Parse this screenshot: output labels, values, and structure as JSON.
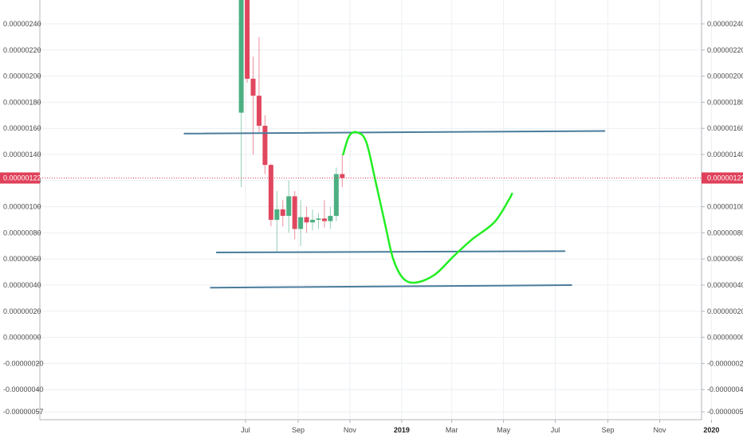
{
  "chart_data": {
    "type": "candlestick",
    "y_ticks": [
      "0.00000240",
      "0.00000220",
      "0.00000200",
      "0.00000180",
      "0.00000160",
      "0.00000140",
      "0.00000120",
      "0.00000100",
      "0.00000080",
      "0.00000060",
      "0.00000040",
      "0.00000020",
      "0.00000000",
      "-0.00000020",
      "-0.00000040",
      "-0.00000057"
    ],
    "ylim": [
      -5.7e-07,
      2.63e-06
    ],
    "x_ticks": [
      {
        "label": "Jul",
        "date": "2018-07-01",
        "bold": false
      },
      {
        "label": "Sep",
        "date": "2018-09-01",
        "bold": false
      },
      {
        "label": "Nov",
        "date": "2018-11-01",
        "bold": false
      },
      {
        "label": "2019",
        "date": "2019-01-01",
        "bold": true
      },
      {
        "label": "Mar",
        "date": "2019-03-01",
        "bold": false
      },
      {
        "label": "May",
        "date": "2019-05-01",
        "bold": false
      },
      {
        "label": "Jul",
        "date": "2019-07-01",
        "bold": false
      },
      {
        "label": "Sep",
        "date": "2019-09-01",
        "bold": false
      },
      {
        "label": "Nov",
        "date": "2019-11-01",
        "bold": false
      },
      {
        "label": "2020",
        "date": "2020-01-01",
        "bold": true
      }
    ],
    "current_price": {
      "label": "0.00000122",
      "value": 1.22e-06,
      "color": "#e0405a"
    },
    "colors": {
      "up": "#4caf82",
      "down": "#e0475e",
      "grid": "#eceff3",
      "trendline": "#4a7c9b",
      "drawing": "#22ee22"
    },
    "candles": [
      {
        "date": "2018-06-25",
        "o": 1.72e-06,
        "h": 3e-06,
        "l": 1.15e-06,
        "c": 3e-06
      },
      {
        "date": "2018-07-02",
        "o": 3e-06,
        "h": 3e-06,
        "l": 1.95e-06,
        "c": 1.98e-06
      },
      {
        "date": "2018-07-09",
        "o": 1.98e-06,
        "h": 2.15e-06,
        "l": 1.4e-06,
        "c": 1.85e-06
      },
      {
        "date": "2018-07-16",
        "o": 1.85e-06,
        "h": 2.3e-06,
        "l": 1.57e-06,
        "c": 1.62e-06
      },
      {
        "date": "2018-07-23",
        "o": 1.62e-06,
        "h": 1.7e-06,
        "l": 1.25e-06,
        "c": 1.32e-06
      },
      {
        "date": "2018-07-30",
        "o": 1.32e-06,
        "h": 1.33e-06,
        "l": 8.5e-07,
        "c": 9e-07
      },
      {
        "date": "2018-08-06",
        "o": 9e-07,
        "h": 1.12e-06,
        "l": 6.5e-07,
        "c": 9.8e-07
      },
      {
        "date": "2018-08-13",
        "o": 9.8e-07,
        "h": 1.05e-06,
        "l": 8.5e-07,
        "c": 9.3e-07
      },
      {
        "date": "2018-08-20",
        "o": 9.3e-07,
        "h": 1.2e-06,
        "l": 8e-07,
        "c": 1.08e-06
      },
      {
        "date": "2018-08-27",
        "o": 1.08e-06,
        "h": 1.12e-06,
        "l": 7.5e-07,
        "c": 8.3e-07
      },
      {
        "date": "2018-09-03",
        "o": 8.3e-07,
        "h": 1.05e-06,
        "l": 7e-07,
        "c": 9.2e-07
      },
      {
        "date": "2018-09-10",
        "o": 9.2e-07,
        "h": 1e-06,
        "l": 8e-07,
        "c": 8.8e-07
      },
      {
        "date": "2018-09-17",
        "o": 8.8e-07,
        "h": 9.8e-07,
        "l": 8.2e-07,
        "c": 9e-07
      },
      {
        "date": "2018-09-24",
        "o": 9e-07,
        "h": 9.5e-07,
        "l": 8.3e-07,
        "c": 9.1e-07
      },
      {
        "date": "2018-10-01",
        "o": 9.1e-07,
        "h": 1.05e-06,
        "l": 8.4e-07,
        "c": 8.9e-07
      },
      {
        "date": "2018-10-08",
        "o": 8.9e-07,
        "h": 1e-06,
        "l": 8.3e-07,
        "c": 9.3e-07
      },
      {
        "date": "2018-10-15",
        "o": 9.3e-07,
        "h": 1.3e-06,
        "l": 8.9e-07,
        "c": 1.25e-06
      },
      {
        "date": "2018-10-22",
        "o": 1.25e-06,
        "h": 1.4e-06,
        "l": 1.15e-06,
        "c": 1.22e-06
      }
    ],
    "trendlines": [
      {
        "x1": "2018-04-20",
        "y1": 1.56e-06,
        "x2": "2019-08-28",
        "y2": 1.58e-06
      },
      {
        "x1": "2018-05-28",
        "y1": 6.5e-07,
        "x2": "2019-07-12",
        "y2": 6.6e-07
      },
      {
        "x1": "2018-05-21",
        "y1": 3.8e-07,
        "x2": "2019-07-20",
        "y2": 4e-07
      }
    ],
    "freehand": [
      {
        "date": "2018-10-24",
        "v": 1.4e-06
      },
      {
        "date": "2018-10-31",
        "v": 1.54e-06
      },
      {
        "date": "2018-11-09",
        "v": 1.57e-06
      },
      {
        "date": "2018-11-20",
        "v": 1.5e-06
      },
      {
        "date": "2018-12-01",
        "v": 1.2e-06
      },
      {
        "date": "2018-12-13",
        "v": 8.5e-07
      },
      {
        "date": "2018-12-22",
        "v": 6e-07
      },
      {
        "date": "2019-01-03",
        "v": 4.5e-07
      },
      {
        "date": "2019-01-18",
        "v": 4.2e-07
      },
      {
        "date": "2019-02-09",
        "v": 4.8e-07
      },
      {
        "date": "2019-03-03",
        "v": 6.2e-07
      },
      {
        "date": "2019-03-25",
        "v": 7.5e-07
      },
      {
        "date": "2019-04-20",
        "v": 8.8e-07
      },
      {
        "date": "2019-05-07",
        "v": 1.05e-06
      },
      {
        "date": "2019-05-11",
        "v": 1.1e-06
      }
    ]
  }
}
